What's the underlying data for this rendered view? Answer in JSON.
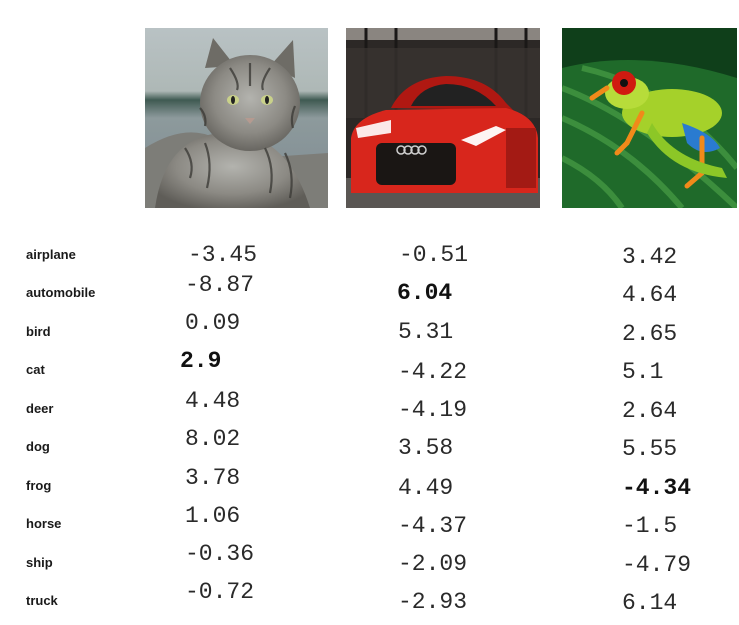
{
  "images": [
    {
      "subject": "cat",
      "icon": "cat-photo"
    },
    {
      "subject": "car",
      "icon": "car-photo"
    },
    {
      "subject": "frog",
      "icon": "frog-photo"
    }
  ],
  "rows": [
    {
      "label": "airplane",
      "scores": [
        "-3.45",
        "-0.51",
        "3.42"
      ]
    },
    {
      "label": "automobile",
      "scores": [
        "-8.87",
        "6.04",
        "4.64"
      ]
    },
    {
      "label": "bird",
      "scores": [
        "0.09",
        "5.31",
        "2.65"
      ]
    },
    {
      "label": "cat",
      "scores": [
        "2.9",
        "-4.22",
        "5.1"
      ]
    },
    {
      "label": "deer",
      "scores": [
        "4.48",
        "-4.19",
        "2.64"
      ]
    },
    {
      "label": "dog",
      "scores": [
        "8.02",
        "3.58",
        "5.55"
      ]
    },
    {
      "label": "frog",
      "scores": [
        "3.78",
        "4.49",
        "-4.34"
      ]
    },
    {
      "label": "horse",
      "scores": [
        "1.06",
        "-4.37",
        "-1.5"
      ]
    },
    {
      "label": "ship",
      "scores": [
        "-0.36",
        "-2.09",
        "-4.79"
      ]
    },
    {
      "label": "truck",
      "scores": [
        "-0.72",
        "-2.93",
        "6.14"
      ]
    }
  ],
  "highlighted": {
    "cat_column": "2.9",
    "car_column": "6.04",
    "frog_column": "-4.34"
  },
  "colors": {
    "text": "#2a2a2a",
    "background": "#ffffff"
  }
}
